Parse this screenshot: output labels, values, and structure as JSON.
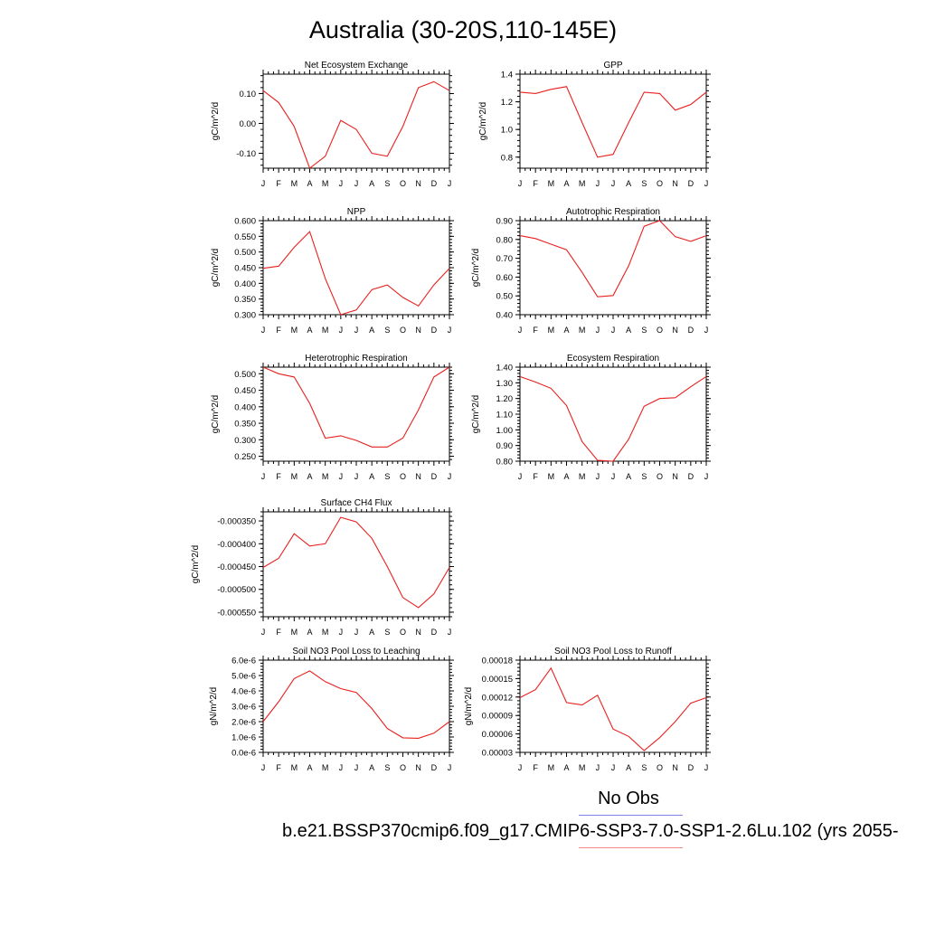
{
  "page": {
    "title": "Australia (30-20S,110-145E)",
    "legend_label": "No Obs",
    "caption": "b.e21.BSSP370cmip6.f09_g17.CMIP6-SSP3-7.0-SSP1-2.6Lu.102 (yrs 2055-",
    "colors": {
      "line": "#e8201e",
      "legend_blue": "#7d86e8",
      "legend_red": "#f08a8a"
    }
  },
  "chart_data": [
    {
      "type": "line",
      "title": "Net Ecosystem Exchange",
      "ylabel": "gC/m^2/d",
      "categories": [
        "J",
        "F",
        "M",
        "A",
        "M",
        "J",
        "J",
        "A",
        "S",
        "O",
        "N",
        "D",
        "J"
      ],
      "values": [
        0.11,
        0.07,
        -0.01,
        -0.15,
        -0.11,
        0.01,
        -0.02,
        -0.1,
        -0.11,
        -0.01,
        0.12,
        0.14,
        0.11
      ],
      "ylim": [
        -0.15,
        0.165
      ],
      "yticks": [
        -0.1,
        0.0,
        0.1
      ],
      "ytick_labels": [
        "-0.10",
        "0.00",
        "0.10"
      ]
    },
    {
      "type": "line",
      "title": "GPP",
      "ylabel": "gC/m^2/d",
      "categories": [
        "J",
        "F",
        "M",
        "A",
        "M",
        "J",
        "J",
        "A",
        "S",
        "O",
        "N",
        "D",
        "J"
      ],
      "values": [
        1.27,
        1.26,
        1.29,
        1.31,
        1.05,
        0.8,
        0.82,
        1.05,
        1.27,
        1.26,
        1.14,
        1.18,
        1.27
      ],
      "ylim": [
        0.72,
        1.4
      ],
      "yticks": [
        0.8,
        1.0,
        1.2,
        1.4
      ],
      "ytick_labels": [
        "0.8",
        "1.0",
        "1.2",
        "1.4"
      ]
    },
    {
      "type": "line",
      "title": "NPP",
      "ylabel": "gC/m^2/d",
      "categories": [
        "J",
        "F",
        "M",
        "A",
        "M",
        "J",
        "J",
        "A",
        "S",
        "O",
        "N",
        "D",
        "J"
      ],
      "values": [
        0.448,
        0.455,
        0.515,
        0.565,
        0.415,
        0.3,
        0.315,
        0.38,
        0.395,
        0.355,
        0.328,
        0.395,
        0.448
      ],
      "ylim": [
        0.3,
        0.6
      ],
      "yticks": [
        0.3,
        0.35,
        0.4,
        0.45,
        0.5,
        0.55,
        0.6
      ],
      "ytick_labels": [
        "0.300",
        "0.350",
        "0.400",
        "0.450",
        "0.500",
        "0.550",
        "0.600"
      ]
    },
    {
      "type": "line",
      "title": "Autotrophic Respiration",
      "ylabel": "gC/m^2/d",
      "categories": [
        "J",
        "F",
        "M",
        "A",
        "M",
        "J",
        "J",
        "A",
        "S",
        "O",
        "N",
        "D",
        "J"
      ],
      "values": [
        0.82,
        0.805,
        0.775,
        0.745,
        0.625,
        0.495,
        0.502,
        0.66,
        0.87,
        0.9,
        0.815,
        0.79,
        0.82
      ],
      "ylim": [
        0.4,
        0.9
      ],
      "yticks": [
        0.4,
        0.5,
        0.6,
        0.7,
        0.8,
        0.9
      ],
      "ytick_labels": [
        "0.40",
        "0.50",
        "0.60",
        "0.70",
        "0.80",
        "0.90"
      ]
    },
    {
      "type": "line",
      "title": "Heterotrophic Respiration",
      "ylabel": "gC/m^2/d",
      "categories": [
        "J",
        "F",
        "M",
        "A",
        "M",
        "J",
        "J",
        "A",
        "S",
        "O",
        "N",
        "D",
        "J"
      ],
      "values": [
        0.52,
        0.5,
        0.49,
        0.41,
        0.305,
        0.312,
        0.298,
        0.278,
        0.278,
        0.305,
        0.39,
        0.49,
        0.52
      ],
      "ylim": [
        0.235,
        0.52
      ],
      "yticks": [
        0.25,
        0.3,
        0.35,
        0.4,
        0.45,
        0.5
      ],
      "ytick_labels": [
        "0.250",
        "0.300",
        "0.350",
        "0.400",
        "0.450",
        "0.500"
      ]
    },
    {
      "type": "line",
      "title": "Ecosystem Respiration",
      "ylabel": "gC/m^2/d",
      "categories": [
        "J",
        "F",
        "M",
        "A",
        "M",
        "J",
        "J",
        "A",
        "S",
        "O",
        "N",
        "D",
        "J"
      ],
      "values": [
        1.34,
        1.305,
        1.265,
        1.155,
        0.925,
        0.805,
        0.795,
        0.94,
        1.15,
        1.2,
        1.205,
        1.275,
        1.34
      ],
      "ylim": [
        0.8,
        1.4
      ],
      "yticks": [
        0.8,
        0.9,
        1.0,
        1.1,
        1.2,
        1.3,
        1.4
      ],
      "ytick_labels": [
        "0.80",
        "0.90",
        "1.00",
        "1.10",
        "1.20",
        "1.30",
        "1.40"
      ]
    },
    {
      "type": "line",
      "title": "Surface CH4 Flux",
      "ylabel": "gC/m^2/d",
      "categories": [
        "J",
        "F",
        "M",
        "A",
        "M",
        "J",
        "J",
        "A",
        "S",
        "O",
        "N",
        "D",
        "J"
      ],
      "values": [
        -0.000452,
        -0.000432,
        -0.000378,
        -0.000405,
        -0.0004,
        -0.000342,
        -0.000352,
        -0.000388,
        -0.00045,
        -0.000518,
        -0.00054,
        -0.00051,
        -0.000452
      ],
      "ylim": [
        -0.00056,
        -0.00033
      ],
      "yticks": [
        -0.00055,
        -0.0005,
        -0.00045,
        -0.0004,
        -0.00035
      ],
      "ytick_labels": [
        "-0.000550",
        "-0.000500",
        "-0.000450",
        "-0.000400",
        "-0.000350"
      ]
    },
    {
      "type": "line",
      "title": "Soil NO3 Pool Loss to Leaching",
      "ylabel": "gN/m^2/d",
      "categories": [
        "J",
        "F",
        "M",
        "A",
        "M",
        "J",
        "J",
        "A",
        "S",
        "O",
        "N",
        "D",
        "J"
      ],
      "values": [
        2e-06,
        3.3e-06,
        4.8e-06,
        5.3e-06,
        4.6e-06,
        4.15e-06,
        3.9e-06,
        2.85e-06,
        1.55e-06,
        9.5e-07,
        9.2e-07,
        1.25e-06,
        2e-06
      ],
      "ylim": [
        0,
        6e-06
      ],
      "yticks": [
        0,
        1e-06,
        2e-06,
        3e-06,
        4e-06,
        5e-06,
        6e-06
      ],
      "ytick_labels": [
        "0.0e-6",
        "1.0e-6",
        "2.0e-6",
        "3.0e-6",
        "4.0e-6",
        "5.0e-6",
        "6.0e-6"
      ]
    },
    {
      "type": "line",
      "title": "Soil NO3 Pool Loss to Runoff",
      "ylabel": "gN/m^2/d",
      "categories": [
        "J",
        "F",
        "M",
        "A",
        "M",
        "J",
        "J",
        "A",
        "S",
        "O",
        "N",
        "D",
        "J"
      ],
      "values": [
        0.000119,
        0.000132,
        0.000167,
        0.000111,
        0.000107,
        0.000123,
        6.8e-05,
        5.6e-05,
        3.3e-05,
        5.4e-05,
        8e-05,
        0.00011,
        0.000119
      ],
      "ylim": [
        3e-05,
        0.00018
      ],
      "yticks": [
        3e-05,
        6e-05,
        9e-05,
        0.00012,
        0.00015,
        0.00018
      ],
      "ytick_labels": [
        "0.00003",
        "0.00006",
        "0.00009",
        "0.00012",
        "0.00015",
        "0.00018"
      ]
    }
  ]
}
